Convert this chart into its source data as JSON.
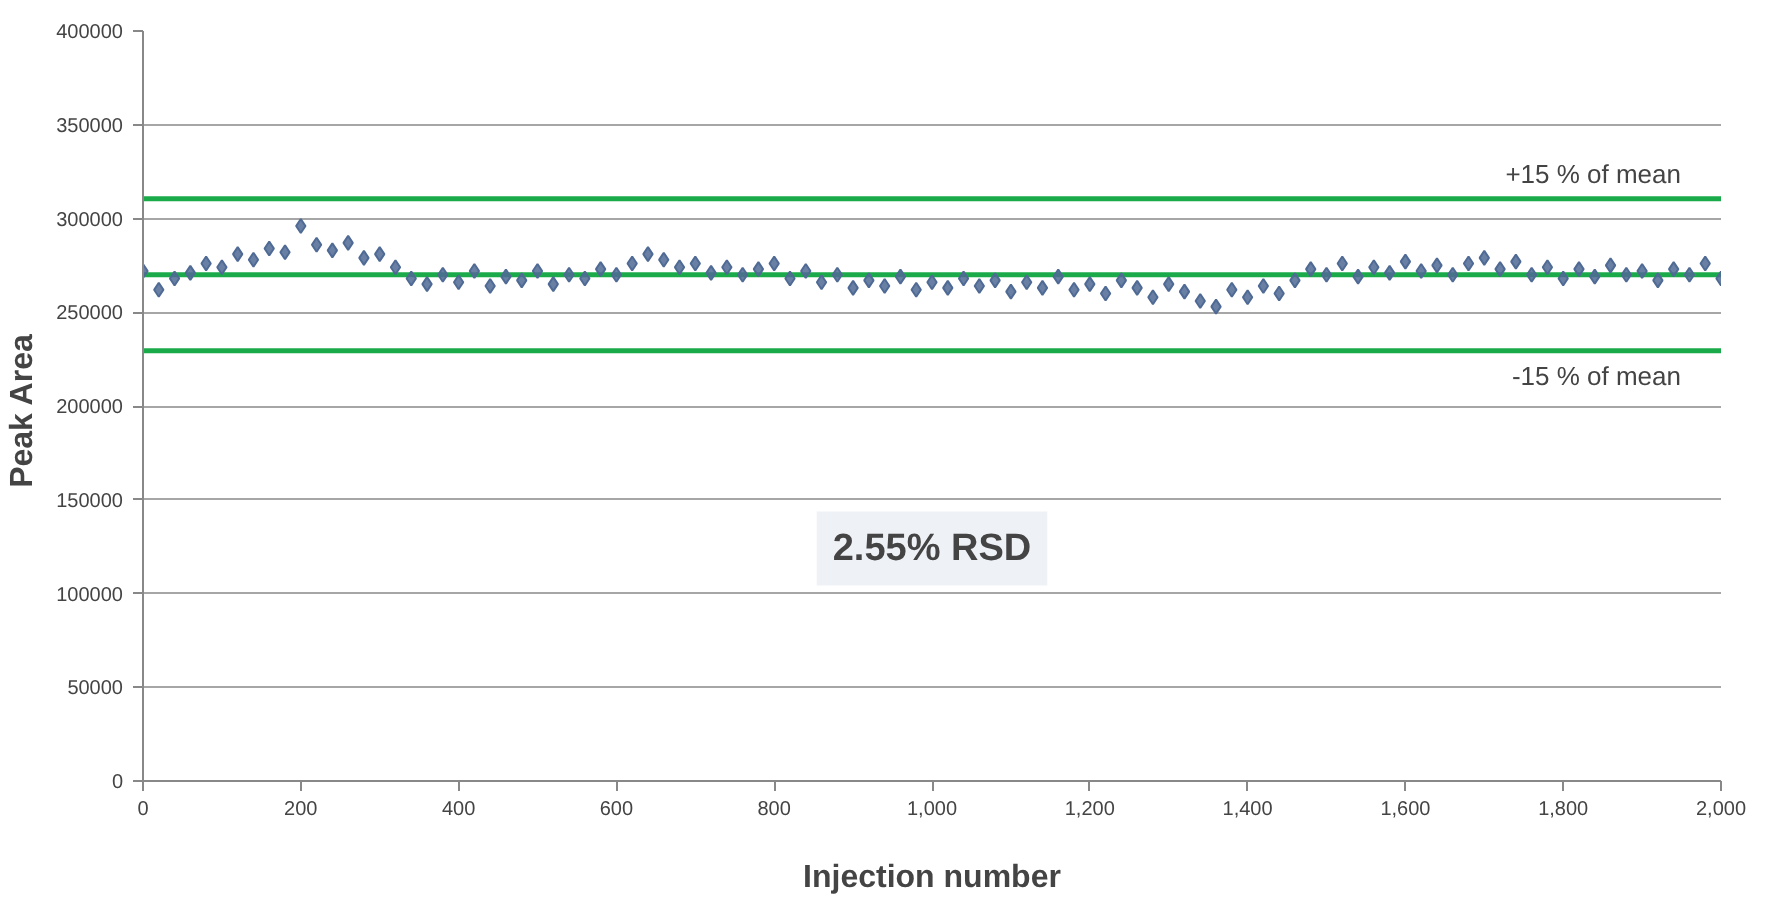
{
  "chart_data": {
    "type": "scatter",
    "xlabel": "Injection number",
    "ylabel": "Peak  Area",
    "annotations": [
      "2.55% RSD"
    ],
    "x": [
      0,
      20,
      40,
      60,
      80,
      100,
      120,
      140,
      160,
      180,
      200,
      220,
      240,
      260,
      280,
      300,
      320,
      340,
      360,
      380,
      400,
      420,
      440,
      460,
      480,
      500,
      520,
      540,
      560,
      580,
      600,
      620,
      640,
      660,
      680,
      700,
      720,
      740,
      760,
      780,
      800,
      820,
      840,
      860,
      880,
      900,
      920,
      940,
      960,
      980,
      1000,
      1020,
      1040,
      1060,
      1080,
      1100,
      1120,
      1140,
      1160,
      1180,
      1200,
      1220,
      1240,
      1260,
      1280,
      1300,
      1320,
      1340,
      1360,
      1380,
      1400,
      1420,
      1440,
      1460,
      1480,
      1500,
      1520,
      1540,
      1560,
      1580,
      1600,
      1620,
      1640,
      1660,
      1680,
      1700,
      1720,
      1740,
      1760,
      1780,
      1800,
      1820,
      1840,
      1860,
      1880,
      1900,
      1920,
      1940,
      1960,
      1980,
      2000
    ],
    "series": [
      {
        "color": "#4f6a94",
        "values": [
          272000,
          262000,
          268000,
          271000,
          276000,
          274000,
          281000,
          278000,
          284000,
          282000,
          296000,
          286000,
          283000,
          287000,
          279000,
          281000,
          274000,
          268000,
          265000,
          270000,
          266000,
          272000,
          264000,
          269000,
          267000,
          272000,
          265000,
          270000,
          268000,
          273000,
          270000,
          276000,
          281000,
          278000,
          274000,
          276000,
          271000,
          274000,
          270000,
          273000,
          276000,
          268000,
          272000,
          266000,
          270000,
          263000,
          267000,
          264000,
          269000,
          262000,
          266000,
          263000,
          268000,
          264000,
          267000,
          261000,
          266000,
          263000,
          269000,
          262000,
          265000,
          260000,
          267000,
          263000,
          258000,
          265000,
          261000,
          256000,
          253000,
          262000,
          258000,
          264000,
          260000,
          267000,
          273000,
          270000,
          276000,
          269000,
          274000,
          271000,
          277000,
          272000,
          275000,
          270000,
          276000,
          279000,
          273000,
          277000,
          270000,
          274000,
          268000,
          273000,
          269000,
          275000,
          270000,
          272000,
          267000,
          273000,
          270000,
          276000,
          268000
        ]
      }
    ],
    "marker": "diamond",
    "xlim": [
      0,
      2000
    ],
    "xticks": [
      0,
      200,
      400,
      600,
      800,
      {
        "value": 1000,
        "label": "1,000"
      },
      {
        "value": 1200,
        "label": "1,200"
      },
      {
        "value": 1400,
        "label": "1,400"
      },
      {
        "value": 1600,
        "label": "1,600"
      },
      {
        "value": 1800,
        "label": "1,800"
      },
      {
        "value": 2000,
        "label": "2,000"
      }
    ],
    "ylim": [
      0,
      400000
    ],
    "yticks": [
      0,
      50000,
      100000,
      150000,
      200000,
      250000,
      300000,
      350000,
      400000
    ],
    "grid": "y",
    "ref_lines": [
      {
        "axis": "y",
        "value": 310500,
        "label": "+15 % of mean",
        "color": "#1aaa4a"
      },
      {
        "axis": "y",
        "value": 270000,
        "label": null,
        "color": "#1aaa4a"
      },
      {
        "axis": "y",
        "value": 229500,
        "label": "-15 % of mean",
        "color": "#1aaa4a"
      }
    ]
  }
}
